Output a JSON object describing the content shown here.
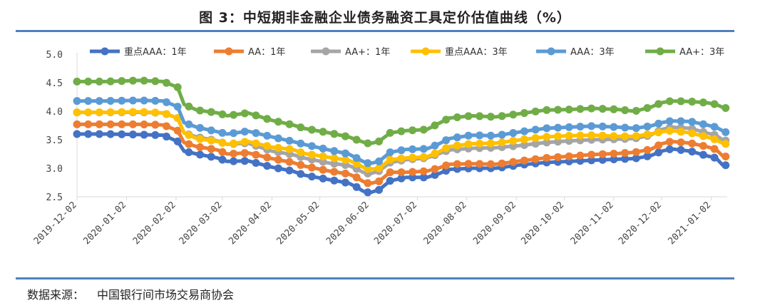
{
  "title": "图 3：中短期非金融企业债务融资工具定价估值曲线（%）",
  "source": {
    "label": "数据来源：",
    "text": "中国银行间市场交易商协会"
  },
  "colors": {
    "rule": "#4f81bd",
    "axis": "#d9d9d9"
  },
  "chart_data": {
    "type": "line",
    "ylim": [
      2.5,
      5.0
    ],
    "yticks": [
      "2.5",
      "3.0",
      "3.5",
      "4.0",
      "4.5",
      "5.0"
    ],
    "x_tick_labels": [
      "2019-12-02",
      "2020-01-02",
      "2020-02-02",
      "2020-03-02",
      "2020-04-02",
      "2020-05-02",
      "2020-06-02",
      "2020-07-02",
      "2020-08-02",
      "2020-09-02",
      "2020-10-02",
      "2020-11-02",
      "2020-12-02",
      "2021-01-02"
    ],
    "x_start": "2019-12-02",
    "x_end": "2021-01-12",
    "legend_position": "top",
    "grid": false,
    "series": [
      {
        "name": "重点AAA：1年",
        "color": "#4472c4",
        "points": [
          [
            "2019-12-02",
            3.6
          ],
          [
            "2019-12-20",
            3.6
          ],
          [
            "2020-01-10",
            3.59
          ],
          [
            "2020-01-25",
            3.58
          ],
          [
            "2020-02-03",
            3.47
          ],
          [
            "2020-02-07",
            3.3
          ],
          [
            "2020-02-15",
            3.25
          ],
          [
            "2020-02-28",
            3.18
          ],
          [
            "2020-03-05",
            3.12
          ],
          [
            "2020-03-18",
            3.13
          ],
          [
            "2020-04-02",
            3.02
          ],
          [
            "2020-04-15",
            2.95
          ],
          [
            "2020-04-22",
            2.88
          ],
          [
            "2020-05-08",
            2.8
          ],
          [
            "2020-05-20",
            2.74
          ],
          [
            "2020-05-25",
            2.67
          ],
          [
            "2020-05-29",
            2.6
          ],
          [
            "2020-06-02",
            2.57
          ],
          [
            "2020-06-08",
            2.62
          ],
          [
            "2020-06-15",
            2.78
          ],
          [
            "2020-06-25",
            2.84
          ],
          [
            "2020-07-08",
            2.84
          ],
          [
            "2020-07-15",
            2.9
          ],
          [
            "2020-07-22",
            2.98
          ],
          [
            "2020-08-05",
            3.0
          ],
          [
            "2020-08-20",
            3.0
          ],
          [
            "2020-09-05",
            3.06
          ],
          [
            "2020-09-20",
            3.1
          ],
          [
            "2020-10-05",
            3.12
          ],
          [
            "2020-10-20",
            3.14
          ],
          [
            "2020-11-05",
            3.16
          ],
          [
            "2020-11-15",
            3.17
          ],
          [
            "2020-11-25",
            3.22
          ],
          [
            "2020-12-02",
            3.3
          ],
          [
            "2020-12-08",
            3.34
          ],
          [
            "2020-12-20",
            3.3
          ],
          [
            "2020-12-30",
            3.22
          ],
          [
            "2021-01-05",
            3.18
          ],
          [
            "2021-01-09",
            3.06
          ],
          [
            "2021-01-12",
            3.05
          ]
        ]
      },
      {
        "name": "AA：1年",
        "color": "#ed7d31",
        "points": [
          [
            "2019-12-02",
            3.77
          ],
          [
            "2019-12-20",
            3.77
          ],
          [
            "2020-01-10",
            3.77
          ],
          [
            "2020-01-25",
            3.76
          ],
          [
            "2020-02-03",
            3.66
          ],
          [
            "2020-02-07",
            3.45
          ],
          [
            "2020-02-15",
            3.38
          ],
          [
            "2020-02-28",
            3.32
          ],
          [
            "2020-03-05",
            3.25
          ],
          [
            "2020-03-18",
            3.27
          ],
          [
            "2020-04-02",
            3.17
          ],
          [
            "2020-04-15",
            3.1
          ],
          [
            "2020-04-22",
            3.04
          ],
          [
            "2020-05-08",
            2.95
          ],
          [
            "2020-05-20",
            2.9
          ],
          [
            "2020-05-25",
            2.84
          ],
          [
            "2020-05-29",
            2.77
          ],
          [
            "2020-06-02",
            2.73
          ],
          [
            "2020-06-08",
            2.77
          ],
          [
            "2020-06-15",
            2.93
          ],
          [
            "2020-06-25",
            2.93
          ],
          [
            "2020-07-08",
            2.95
          ],
          [
            "2020-07-15",
            3.0
          ],
          [
            "2020-07-22",
            3.07
          ],
          [
            "2020-08-05",
            3.08
          ],
          [
            "2020-08-20",
            3.07
          ],
          [
            "2020-09-05",
            3.13
          ],
          [
            "2020-09-20",
            3.18
          ],
          [
            "2020-10-05",
            3.21
          ],
          [
            "2020-10-20",
            3.24
          ],
          [
            "2020-11-05",
            3.26
          ],
          [
            "2020-11-15",
            3.28
          ],
          [
            "2020-11-25",
            3.33
          ],
          [
            "2020-12-02",
            3.43
          ],
          [
            "2020-12-08",
            3.47
          ],
          [
            "2020-12-20",
            3.44
          ],
          [
            "2020-12-30",
            3.38
          ],
          [
            "2021-01-05",
            3.33
          ],
          [
            "2021-01-09",
            3.22
          ],
          [
            "2021-01-12",
            3.2
          ]
        ]
      },
      {
        "name": "AA+：1年",
        "color": "#a5a5a5",
        "points": [
          [
            "2019-12-02",
            3.98
          ],
          [
            "2019-12-20",
            3.98
          ],
          [
            "2020-01-10",
            3.98
          ],
          [
            "2020-01-25",
            3.97
          ],
          [
            "2020-02-03",
            3.88
          ],
          [
            "2020-02-07",
            3.62
          ],
          [
            "2020-02-15",
            3.55
          ],
          [
            "2020-02-28",
            3.48
          ],
          [
            "2020-03-05",
            3.42
          ],
          [
            "2020-03-18",
            3.44
          ],
          [
            "2020-04-02",
            3.3
          ],
          [
            "2020-04-15",
            3.24
          ],
          [
            "2020-04-22",
            3.18
          ],
          [
            "2020-05-08",
            3.09
          ],
          [
            "2020-05-20",
            3.05
          ],
          [
            "2020-05-25",
            2.99
          ],
          [
            "2020-05-29",
            2.93
          ],
          [
            "2020-06-02",
            2.9
          ],
          [
            "2020-06-08",
            2.95
          ],
          [
            "2020-06-15",
            3.1
          ],
          [
            "2020-06-25",
            3.15
          ],
          [
            "2020-07-08",
            3.18
          ],
          [
            "2020-07-15",
            3.25
          ],
          [
            "2020-07-22",
            3.32
          ],
          [
            "2020-08-05",
            3.35
          ],
          [
            "2020-08-20",
            3.36
          ],
          [
            "2020-09-05",
            3.4
          ],
          [
            "2020-09-20",
            3.45
          ],
          [
            "2020-10-05",
            3.48
          ],
          [
            "2020-10-20",
            3.5
          ],
          [
            "2020-11-05",
            3.51
          ],
          [
            "2020-11-15",
            3.52
          ],
          [
            "2020-11-25",
            3.58
          ],
          [
            "2020-12-02",
            3.68
          ],
          [
            "2020-12-08",
            3.72
          ],
          [
            "2020-12-20",
            3.7
          ],
          [
            "2020-12-30",
            3.62
          ],
          [
            "2021-01-05",
            3.58
          ],
          [
            "2021-01-09",
            3.5
          ],
          [
            "2021-01-12",
            3.48
          ]
        ]
      },
      {
        "name": "重点AAA：3年",
        "color": "#ffc000",
        "points": [
          [
            "2019-12-02",
            3.98
          ],
          [
            "2019-12-20",
            3.98
          ],
          [
            "2020-01-10",
            3.99
          ],
          [
            "2020-01-25",
            3.97
          ],
          [
            "2020-02-03",
            3.88
          ],
          [
            "2020-02-07",
            3.62
          ],
          [
            "2020-02-15",
            3.52
          ],
          [
            "2020-02-28",
            3.47
          ],
          [
            "2020-03-05",
            3.42
          ],
          [
            "2020-03-18",
            3.47
          ],
          [
            "2020-04-02",
            3.37
          ],
          [
            "2020-04-15",
            3.33
          ],
          [
            "2020-04-22",
            3.26
          ],
          [
            "2020-05-08",
            3.19
          ],
          [
            "2020-05-20",
            3.14
          ],
          [
            "2020-05-25",
            3.08
          ],
          [
            "2020-05-29",
            3.02
          ],
          [
            "2020-06-02",
            2.98
          ],
          [
            "2020-06-08",
            3.0
          ],
          [
            "2020-06-15",
            3.15
          ],
          [
            "2020-06-25",
            3.18
          ],
          [
            "2020-07-08",
            3.2
          ],
          [
            "2020-07-15",
            3.28
          ],
          [
            "2020-07-22",
            3.38
          ],
          [
            "2020-08-05",
            3.43
          ],
          [
            "2020-08-20",
            3.44
          ],
          [
            "2020-09-05",
            3.5
          ],
          [
            "2020-09-20",
            3.55
          ],
          [
            "2020-10-05",
            3.57
          ],
          [
            "2020-10-20",
            3.58
          ],
          [
            "2020-11-05",
            3.56
          ],
          [
            "2020-11-15",
            3.56
          ],
          [
            "2020-11-25",
            3.6
          ],
          [
            "2020-12-02",
            3.64
          ],
          [
            "2020-12-08",
            3.66
          ],
          [
            "2020-12-20",
            3.62
          ],
          [
            "2020-12-30",
            3.55
          ],
          [
            "2021-01-05",
            3.5
          ],
          [
            "2021-01-09",
            3.44
          ],
          [
            "2021-01-12",
            3.42
          ]
        ]
      },
      {
        "name": "AAA：3年",
        "color": "#5b9bd5",
        "points": [
          [
            "2019-12-02",
            4.18
          ],
          [
            "2019-12-20",
            4.18
          ],
          [
            "2020-01-10",
            4.19
          ],
          [
            "2020-01-25",
            4.18
          ],
          [
            "2020-02-03",
            4.08
          ],
          [
            "2020-02-07",
            3.8
          ],
          [
            "2020-02-15",
            3.72
          ],
          [
            "2020-02-28",
            3.64
          ],
          [
            "2020-03-05",
            3.6
          ],
          [
            "2020-03-18",
            3.65
          ],
          [
            "2020-04-02",
            3.55
          ],
          [
            "2020-04-15",
            3.47
          ],
          [
            "2020-04-22",
            3.42
          ],
          [
            "2020-05-08",
            3.32
          ],
          [
            "2020-05-20",
            3.25
          ],
          [
            "2020-05-25",
            3.18
          ],
          [
            "2020-05-29",
            3.12
          ],
          [
            "2020-06-02",
            3.08
          ],
          [
            "2020-06-08",
            3.12
          ],
          [
            "2020-06-15",
            3.28
          ],
          [
            "2020-06-25",
            3.33
          ],
          [
            "2020-07-08",
            3.34
          ],
          [
            "2020-07-15",
            3.42
          ],
          [
            "2020-07-22",
            3.52
          ],
          [
            "2020-08-05",
            3.58
          ],
          [
            "2020-08-20",
            3.57
          ],
          [
            "2020-09-05",
            3.64
          ],
          [
            "2020-09-20",
            3.7
          ],
          [
            "2020-10-05",
            3.72
          ],
          [
            "2020-10-20",
            3.74
          ],
          [
            "2020-11-05",
            3.72
          ],
          [
            "2020-11-15",
            3.7
          ],
          [
            "2020-11-25",
            3.74
          ],
          [
            "2020-12-02",
            3.8
          ],
          [
            "2020-12-08",
            3.83
          ],
          [
            "2020-12-20",
            3.82
          ],
          [
            "2020-12-30",
            3.76
          ],
          [
            "2021-01-05",
            3.72
          ],
          [
            "2021-01-09",
            3.66
          ],
          [
            "2021-01-12",
            3.62
          ]
        ]
      },
      {
        "name": "AA+：3年",
        "color": "#70ad47",
        "points": [
          [
            "2019-12-02",
            4.52
          ],
          [
            "2019-12-20",
            4.52
          ],
          [
            "2020-01-10",
            4.54
          ],
          [
            "2020-01-25",
            4.52
          ],
          [
            "2020-02-03",
            4.42
          ],
          [
            "2020-02-07",
            4.12
          ],
          [
            "2020-02-15",
            4.02
          ],
          [
            "2020-02-28",
            3.97
          ],
          [
            "2020-03-05",
            3.92
          ],
          [
            "2020-03-18",
            3.97
          ],
          [
            "2020-04-02",
            3.84
          ],
          [
            "2020-04-15",
            3.76
          ],
          [
            "2020-04-22",
            3.7
          ],
          [
            "2020-05-08",
            3.62
          ],
          [
            "2020-05-20",
            3.55
          ],
          [
            "2020-05-25",
            3.5
          ],
          [
            "2020-05-29",
            3.46
          ],
          [
            "2020-06-02",
            3.43
          ],
          [
            "2020-06-08",
            3.47
          ],
          [
            "2020-06-15",
            3.62
          ],
          [
            "2020-06-25",
            3.66
          ],
          [
            "2020-07-08",
            3.68
          ],
          [
            "2020-07-15",
            3.78
          ],
          [
            "2020-07-22",
            3.88
          ],
          [
            "2020-08-05",
            3.92
          ],
          [
            "2020-08-20",
            3.9
          ],
          [
            "2020-09-05",
            3.96
          ],
          [
            "2020-09-20",
            4.02
          ],
          [
            "2020-10-05",
            4.03
          ],
          [
            "2020-10-20",
            4.05
          ],
          [
            "2020-11-05",
            4.03
          ],
          [
            "2020-11-15",
            4.0
          ],
          [
            "2020-11-25",
            4.07
          ],
          [
            "2020-12-02",
            4.15
          ],
          [
            "2020-12-08",
            4.18
          ],
          [
            "2020-12-20",
            4.17
          ],
          [
            "2020-12-30",
            4.15
          ],
          [
            "2021-01-05",
            4.12
          ],
          [
            "2021-01-09",
            4.07
          ],
          [
            "2021-01-12",
            4.05
          ]
        ]
      }
    ]
  }
}
